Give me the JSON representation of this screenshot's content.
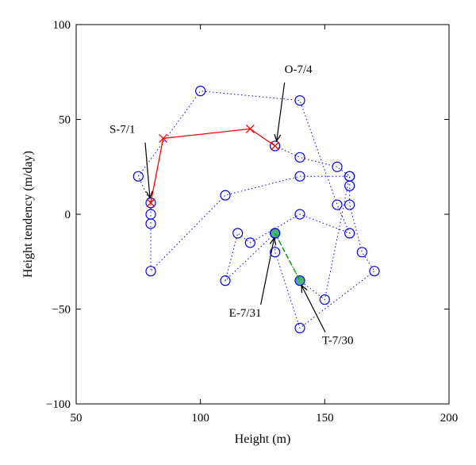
{
  "chart_data": {
    "type": "scatter",
    "xlabel": "Height (m)",
    "ylabel": "Height tendency (m/day)",
    "xlim": [
      50,
      200
    ],
    "ylim": [
      -100,
      100
    ],
    "xticks": [
      50,
      100,
      150,
      200
    ],
    "yticks": [
      -100,
      -50,
      0,
      50,
      100
    ],
    "grid": false,
    "series": [
      {
        "style": "blue-dotted-circles",
        "color": "#0000ff",
        "points": [
          [
            130,
            36
          ],
          [
            140,
            30
          ],
          [
            155,
            25
          ],
          [
            160,
            20
          ],
          [
            160,
            15
          ],
          [
            160,
            5
          ],
          [
            165,
            -20
          ],
          [
            170,
            -30
          ],
          [
            140,
            -60
          ],
          [
            130,
            -20
          ],
          [
            130,
            -10
          ],
          [
            110,
            -35
          ],
          [
            115,
            -10
          ],
          [
            120,
            -15
          ],
          [
            140,
            0
          ],
          [
            160,
            -10
          ],
          [
            155,
            5
          ],
          [
            140,
            60
          ],
          [
            100,
            65
          ],
          [
            75,
            20
          ],
          [
            80,
            6
          ],
          [
            80,
            0
          ],
          [
            80,
            -5
          ],
          [
            80,
            -30
          ],
          [
            110,
            10
          ],
          [
            140,
            20
          ],
          [
            160,
            20
          ],
          [
            150,
            -45
          ],
          [
            140,
            -35
          ],
          [
            130,
            -10
          ]
        ]
      },
      {
        "style": "red-solid-x",
        "color": "#ff0000",
        "points": [
          [
            80,
            6
          ],
          [
            85,
            40
          ],
          [
            120,
            45
          ],
          [
            130,
            36
          ]
        ]
      },
      {
        "style": "green-dashed",
        "color": "#00aa00",
        "points": [
          [
            130,
            -10
          ],
          [
            140,
            -35
          ]
        ]
      }
    ],
    "annotations": [
      {
        "text": "S-7/1",
        "point": [
          80,
          6
        ]
      },
      {
        "text": "O-7/4",
        "point": [
          130,
          36
        ]
      },
      {
        "text": "E-7/31",
        "point": [
          130,
          -10
        ]
      },
      {
        "text": "T-7/30",
        "point": [
          140,
          -35
        ]
      }
    ],
    "highlight_colors": {
      "start_end_fill": "#4caf7d"
    }
  }
}
